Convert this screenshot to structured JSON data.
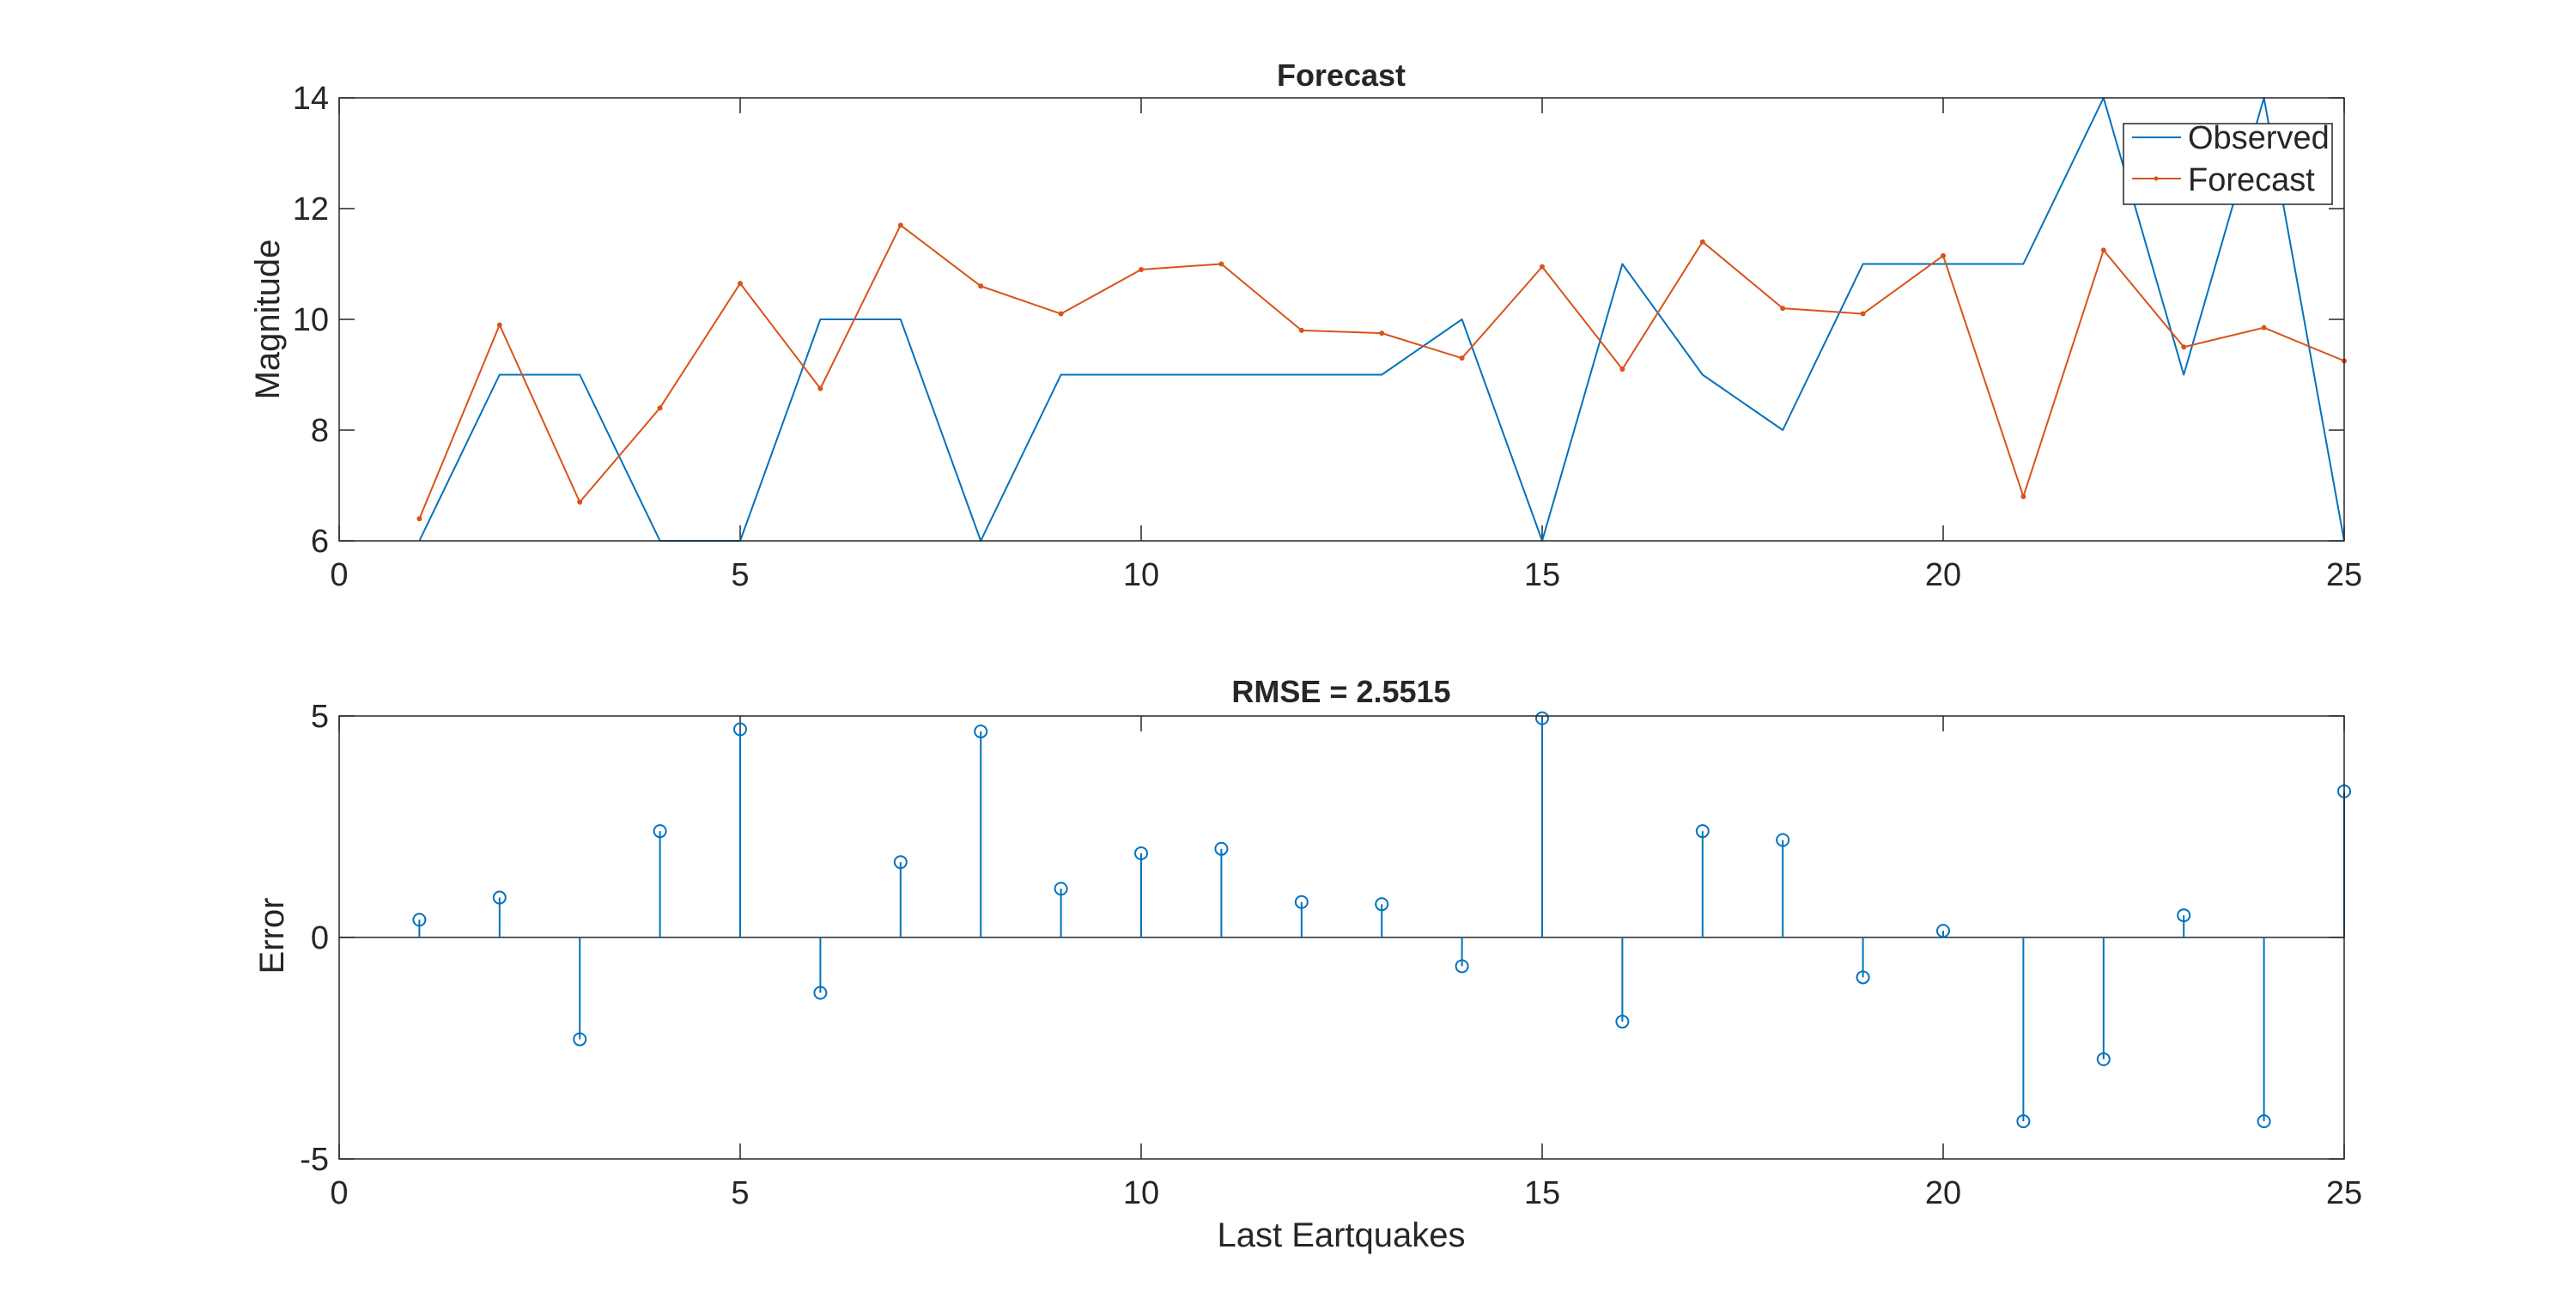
{
  "colors": {
    "observed": "#0072BD",
    "forecast": "#D95319",
    "axis": "#262626",
    "background": "#ffffff"
  },
  "chart_data": [
    {
      "type": "line",
      "title": "Forecast",
      "xlabel": "",
      "ylabel": "Magnitude",
      "xlim": [
        0,
        25
      ],
      "ylim": [
        6,
        14
      ],
      "xticks": [
        0,
        5,
        10,
        15,
        20,
        25
      ],
      "yticks": [
        6,
        8,
        10,
        12,
        14
      ],
      "grid": false,
      "legend_position": "top-right",
      "x": [
        1,
        2,
        3,
        4,
        5,
        6,
        7,
        8,
        9,
        10,
        11,
        12,
        13,
        14,
        15,
        16,
        17,
        18,
        19,
        20,
        21,
        22,
        23,
        24,
        25
      ],
      "series": [
        {
          "name": "Observed",
          "marker": "none",
          "values": [
            6,
            9,
            9,
            6,
            6,
            10,
            10,
            6,
            9,
            9,
            9,
            9,
            9,
            10,
            6,
            11,
            9,
            8,
            11,
            11,
            11,
            14,
            9,
            14,
            6
          ]
        },
        {
          "name": "Forecast",
          "marker": "point",
          "values": [
            6.4,
            9.9,
            6.7,
            8.4,
            10.65,
            8.75,
            11.7,
            10.6,
            10.1,
            10.9,
            11.0,
            9.8,
            9.75,
            9.3,
            10.95,
            9.1,
            11.4,
            10.2,
            10.1,
            11.15,
            6.8,
            11.25,
            9.5,
            9.85,
            9.25
          ]
        }
      ]
    },
    {
      "type": "stem",
      "title": "RMSE = 2.5515",
      "xlabel": "Last Eartquakes",
      "ylabel": "Error",
      "xlim": [
        0,
        25
      ],
      "ylim": [
        -5,
        5
      ],
      "xticks": [
        0,
        5,
        10,
        15,
        20,
        25
      ],
      "yticks": [
        -5,
        0,
        5
      ],
      "grid": false,
      "x": [
        1,
        2,
        3,
        4,
        5,
        6,
        7,
        8,
        9,
        10,
        11,
        12,
        13,
        14,
        15,
        16,
        17,
        18,
        19,
        20,
        21,
        22,
        23,
        24,
        25
      ],
      "values": [
        0.4,
        0.9,
        -2.3,
        2.4,
        4.7,
        -1.25,
        1.7,
        4.65,
        1.1,
        1.9,
        2.0,
        0.8,
        0.75,
        -0.65,
        4.95,
        -1.9,
        2.4,
        2.2,
        -0.9,
        0.15,
        -4.15,
        -2.75,
        0.5,
        -4.15,
        3.3
      ]
    }
  ]
}
